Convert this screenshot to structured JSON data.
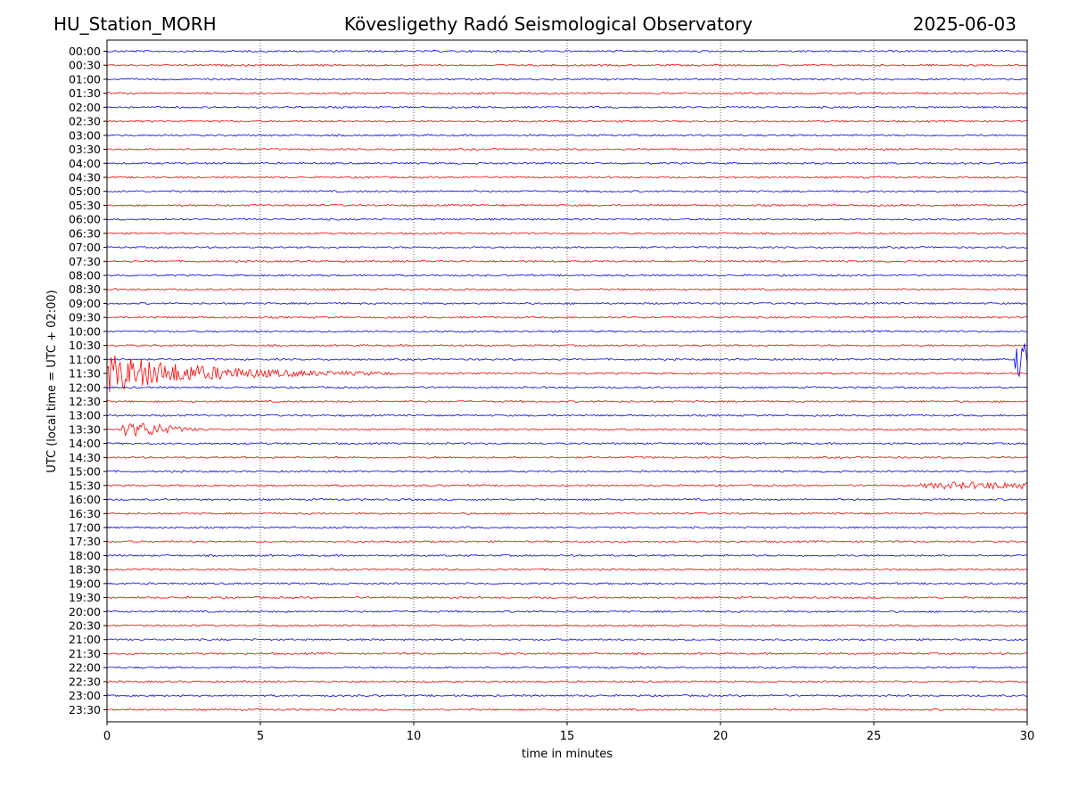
{
  "header": {
    "station": "HU_Station_MORH",
    "observatory": "Kövesligethy Radó Seismological Observatory",
    "date": "2025-06-03"
  },
  "chart_data": {
    "type": "line",
    "title": "Kövesligethy Radó Seismological Observatory",
    "xlabel": "time in minutes",
    "ylabel": "UTC (local time = UTC + 02:00)",
    "xlim": [
      0,
      30
    ],
    "x_ticks": [
      0,
      5,
      10,
      15,
      20,
      25,
      30
    ],
    "x_tick_labels": [
      "0",
      "5",
      "10",
      "15",
      "20",
      "25",
      "30"
    ],
    "grid_x": true,
    "row_labels": [
      "00:00",
      "00:30",
      "01:00",
      "01:30",
      "02:00",
      "02:30",
      "03:00",
      "03:30",
      "04:00",
      "04:30",
      "05:00",
      "05:30",
      "06:00",
      "06:30",
      "07:00",
      "07:30",
      "08:00",
      "08:30",
      "09:00",
      "09:30",
      "10:00",
      "10:30",
      "11:00",
      "11:30",
      "12:00",
      "12:30",
      "13:00",
      "13:30",
      "14:00",
      "14:30",
      "15:00",
      "15:30",
      "16:00",
      "16:30",
      "17:00",
      "17:30",
      "18:00",
      "18:30",
      "19:00",
      "19:30",
      "20:00",
      "20:30",
      "21:00",
      "21:30",
      "22:00",
      "22:30",
      "23:00",
      "23:30"
    ],
    "trace_colors": [
      "#0000ff",
      "#ff0000"
    ],
    "events": [
      {
        "row": "11:00",
        "start_min": 29.6,
        "end_min": 30.0,
        "amplitude": "large"
      },
      {
        "row": "11:30",
        "start_min": 0.0,
        "end_min": 9.3,
        "amplitude": "large"
      },
      {
        "row": "13:30",
        "start_min": 0.5,
        "end_min": 4.0,
        "amplitude": "medium"
      },
      {
        "row": "15:30",
        "start_min": 26.5,
        "end_min": 30.0,
        "amplitude": "small"
      }
    ]
  }
}
